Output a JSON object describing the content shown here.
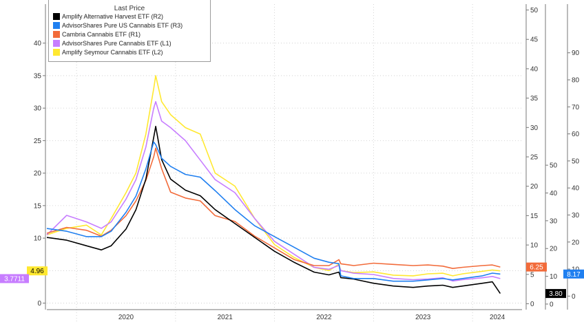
{
  "legend": {
    "title": "Last Price",
    "items": [
      {
        "label": "Amplify Alternative Harvest ETF  (R2)",
        "color": "#000000"
      },
      {
        "label": "AdvisorShares Pure US Cannabis ETF  (R3)",
        "color": "#1f7ff0"
      },
      {
        "label": "Cambria Cannabis ETF  (R1)",
        "color": "#f26b3a"
      },
      {
        "label": "AdvisorShares Pure Cannabis ETF  (L1)",
        "color": "#c77dff"
      },
      {
        "label": "Amplify Seymour Cannabis ETF  (L2)",
        "color": "#ffe830"
      }
    ]
  },
  "chart_data": {
    "type": "line",
    "x_axis": {
      "labels": [
        "2020",
        "2021",
        "2022",
        "2023",
        "2024"
      ]
    },
    "axes": {
      "left": {
        "ylim": [
          -1,
          46
        ],
        "ticks": [
          0,
          5,
          10,
          15,
          20,
          25,
          30,
          35,
          40
        ]
      },
      "r1": {
        "ylim": [
          -1,
          51
        ],
        "ticks": [
          0,
          5,
          10,
          15,
          20,
          25,
          30,
          35,
          40,
          45,
          50
        ]
      },
      "r2": {
        "ylim": [
          -2,
          108
        ],
        "ticks": [
          0,
          10,
          20,
          30,
          40,
          50
        ]
      },
      "r3": {
        "ylim": [
          -5,
          108
        ],
        "ticks": [
          0,
          10,
          20,
          30,
          40,
          50,
          60,
          70,
          80,
          90
        ]
      }
    },
    "time_range": [
      2019.7,
      2024.5
    ],
    "series": [
      {
        "name": "Amplify Seymour Cannabis ETF  (L2)",
        "axis": "left",
        "color": "#ffe830",
        "t": [
          2019.7,
          2019.9,
          2020.1,
          2020.25,
          2020.35,
          2020.5,
          2020.6,
          2020.7,
          2020.78,
          2020.8,
          2020.86,
          2020.95,
          2021.1,
          2021.25,
          2021.4,
          2021.6,
          2021.8,
          2022.0,
          2022.2,
          2022.4,
          2022.55,
          2022.65,
          2022.67,
          2022.8,
          2023.0,
          2023.2,
          2023.4,
          2023.55,
          2023.7,
          2023.8,
          2023.9,
          2024.1,
          2024.2,
          2024.28
        ],
        "y": [
          10.5,
          11.5,
          12,
          10.5,
          13,
          17,
          20,
          26,
          33,
          35,
          31,
          29,
          27,
          26,
          20,
          18,
          13,
          9,
          7,
          5.5,
          5,
          6,
          5,
          4.7,
          4.8,
          4.3,
          4.2,
          4.5,
          4.6,
          4.2,
          4.5,
          4.9,
          5.1,
          4.96
        ]
      },
      {
        "name": "AdvisorShares Pure Cannabis ETF  (L1)",
        "axis": "left",
        "color": "#c77dff",
        "t": [
          2019.7,
          2019.9,
          2020.1,
          2020.25,
          2020.35,
          2020.5,
          2020.6,
          2020.7,
          2020.78,
          2020.8,
          2020.86,
          2020.95,
          2021.1,
          2021.25,
          2021.4,
          2021.6,
          2021.8,
          2022.0,
          2022.2,
          2022.4,
          2022.55,
          2022.65,
          2022.67,
          2022.8,
          2023.0,
          2023.2,
          2023.4,
          2023.55,
          2023.7,
          2023.8,
          2023.9,
          2024.1,
          2024.2,
          2024.28
        ],
        "y": [
          10.5,
          13.5,
          12.5,
          11.5,
          12.5,
          16,
          19,
          24,
          30,
          31,
          28,
          27,
          25,
          22,
          19,
          17,
          13,
          9.5,
          7.5,
          5.5,
          5.2,
          5.8,
          5,
          4.6,
          4.4,
          3.8,
          3.6,
          3.7,
          3.9,
          3.4,
          3.6,
          3.9,
          4.1,
          3.7711
        ]
      }
    ],
    "series_right": [
      {
        "name": "Cambria Cannabis ETF  (R1)",
        "axis": "r1",
        "color": "#f26b3a",
        "t": [
          2019.7,
          2019.9,
          2020.1,
          2020.25,
          2020.35,
          2020.5,
          2020.6,
          2020.7,
          2020.78,
          2020.8,
          2020.86,
          2020.95,
          2021.1,
          2021.25,
          2021.4,
          2021.6,
          2021.8,
          2022.0,
          2022.2,
          2022.4,
          2022.55,
          2022.65,
          2022.67,
          2022.8,
          2023.0,
          2023.2,
          2023.4,
          2023.55,
          2023.7,
          2023.8,
          2023.9,
          2024.1,
          2024.2,
          2024.28
        ],
        "y": [
          12,
          13,
          12.5,
          11.5,
          12.5,
          15,
          17.5,
          21,
          25,
          26.5,
          23,
          19,
          18,
          17.5,
          15,
          14,
          11.5,
          9.5,
          7.5,
          6.5,
          6.5,
          7.5,
          6.8,
          6.5,
          6.9,
          6.7,
          6.5,
          6.6,
          6.4,
          6.0,
          6.2,
          6.5,
          6.6,
          6.25
        ]
      },
      {
        "name": "Amplify Alternative Harvest ETF  (R2)",
        "axis": "r2",
        "color": "#000000",
        "t": [
          2019.7,
          2019.9,
          2020.1,
          2020.25,
          2020.35,
          2020.5,
          2020.6,
          2020.7,
          2020.78,
          2020.8,
          2020.86,
          2020.95,
          2021.1,
          2021.25,
          2021.4,
          2021.6,
          2021.8,
          2022.0,
          2022.2,
          2022.4,
          2022.55,
          2022.65,
          2022.67,
          2022.8,
          2023.0,
          2023.2,
          2023.4,
          2023.55,
          2023.7,
          2023.8,
          2023.9,
          2024.1,
          2024.2,
          2024.28
        ],
        "y": [
          24,
          23,
          21,
          19.5,
          21,
          27,
          34,
          45,
          60,
          64,
          52,
          45,
          41,
          39,
          34,
          29,
          24,
          19,
          15,
          11.5,
          10.5,
          11.5,
          9.5,
          9,
          7.5,
          6.5,
          6,
          6.5,
          6.8,
          6,
          6.5,
          7.5,
          8,
          3.8
        ]
      },
      {
        "name": "AdvisorShares Pure US Cannabis ETF  (R3)",
        "axis": "r3",
        "color": "#1f7ff0",
        "t": [
          2019.7,
          2019.9,
          2020.1,
          2020.25,
          2020.35,
          2020.5,
          2020.6,
          2020.7,
          2020.78,
          2020.8,
          2020.86,
          2020.95,
          2021.1,
          2021.25,
          2021.4,
          2021.6,
          2021.8,
          2022.0,
          2022.2,
          2022.4,
          2022.55,
          2022.65,
          2022.67,
          2022.8,
          2023.0,
          2023.2,
          2023.4,
          2023.55,
          2023.7,
          2023.8,
          2023.9,
          2024.1,
          2024.2,
          2024.28
        ],
        "y": [
          25,
          24,
          22,
          22,
          24,
          31,
          37,
          47,
          57,
          56,
          51,
          48,
          45,
          44,
          39,
          32,
          26,
          22,
          18,
          14,
          12.5,
          12,
          7.5,
          6.5,
          6.5,
          5.5,
          5.5,
          6,
          6.5,
          6,
          6.5,
          7.5,
          8.5,
          8.17
        ]
      }
    ],
    "last_price_labels": [
      {
        "text": "4.96",
        "axis": "left",
        "color": "#ffe830"
      },
      {
        "text": "3.7711",
        "axis": "left",
        "color": "#c77dff"
      },
      {
        "text": "6.25",
        "axis": "r1",
        "color": "#f26b3a"
      },
      {
        "text": "3.80",
        "axis": "r2",
        "color": "#000000"
      },
      {
        "text": "8.17",
        "axis": "r3",
        "color": "#1f7ff0"
      }
    ]
  }
}
